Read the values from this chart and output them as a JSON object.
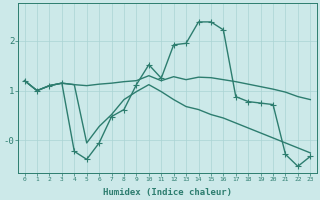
{
  "xlabel": "Humidex (Indice chaleur)",
  "bg_color": "#cce9e9",
  "grid_color": "#aad4d4",
  "line_color": "#2d7d6f",
  "xlim": [
    -0.5,
    23.5
  ],
  "ylim": [
    -0.65,
    2.75
  ],
  "line1_x": [
    0,
    1,
    2,
    3,
    4,
    5,
    6,
    7,
    8,
    9,
    10,
    11,
    12,
    13,
    14,
    15,
    16,
    17,
    18,
    19,
    20,
    21,
    22,
    23
  ],
  "line1_y": [
    1.2,
    1.0,
    1.1,
    1.15,
    1.12,
    1.1,
    1.13,
    1.15,
    1.18,
    1.2,
    1.3,
    1.2,
    1.28,
    1.22,
    1.27,
    1.26,
    1.22,
    1.18,
    1.13,
    1.08,
    1.03,
    0.97,
    0.88,
    0.82
  ],
  "line2_x": [
    0,
    1,
    2,
    3,
    4,
    5,
    6,
    7,
    8,
    9,
    10,
    11,
    12,
    13,
    14,
    15,
    16,
    17,
    18,
    19,
    20,
    21,
    22,
    23
  ],
  "line2_y": [
    1.2,
    1.0,
    1.1,
    1.15,
    -0.22,
    -0.38,
    -0.05,
    0.48,
    0.62,
    1.12,
    1.52,
    1.25,
    1.92,
    1.95,
    2.38,
    2.38,
    2.22,
    0.88,
    0.78,
    0.75,
    0.72,
    -0.28,
    -0.52,
    -0.32
  ],
  "line3_x": [
    0,
    1,
    2,
    3,
    4,
    5,
    6,
    7,
    8,
    9,
    10,
    11,
    12,
    13,
    14,
    15,
    16,
    17,
    18,
    19,
    20,
    21,
    22,
    23
  ],
  "line3_y": [
    1.2,
    1.0,
    1.1,
    1.15,
    1.12,
    -0.05,
    0.28,
    0.52,
    0.82,
    0.98,
    1.12,
    0.98,
    0.82,
    0.68,
    0.62,
    0.52,
    0.45,
    0.35,
    0.25,
    0.15,
    0.05,
    -0.05,
    -0.15,
    -0.25
  ],
  "line_width": 1.0,
  "marker": "+",
  "marker_size": 4
}
